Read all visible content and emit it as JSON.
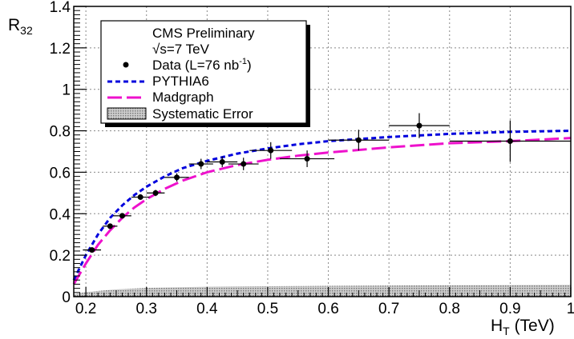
{
  "chart_data": {
    "type": "line",
    "title": "",
    "xlabel": "H_T (TeV)",
    "ylabel": "R_32",
    "xlim": [
      0.18,
      1.0
    ],
    "ylim": [
      0,
      1.4
    ],
    "grid": true,
    "x_ticks": [
      "0.2",
      "0.3",
      "0.4",
      "0.5",
      "0.6",
      "0.7",
      "0.8",
      "0.9",
      "1"
    ],
    "y_ticks": [
      "0",
      "0.2",
      "0.4",
      "0.6",
      "0.8",
      "1",
      "1.2",
      "1.4"
    ],
    "legend_position": "top-left",
    "legend": {
      "header": "CMS Preliminary",
      "energy": "√s=7 TeV",
      "entries": [
        {
          "key": "data",
          "label": "Data (L=76 nb",
          "superscript": "-1",
          "suffix": ")"
        },
        {
          "key": "pythia",
          "label": "PYTHIA6"
        },
        {
          "key": "madgraph",
          "label": "Madgraph"
        },
        {
          "key": "syst",
          "label": "Systematic Error"
        }
      ]
    },
    "colors": {
      "pythia": "#0000dd",
      "madgraph": "#ee11cc",
      "data": "#000000",
      "syst": "#aaaaaa"
    },
    "series": [
      {
        "name": "Data (L=76 nb-1)",
        "style": "points-with-errors",
        "points": [
          {
            "x": 0.21,
            "y": 0.225,
            "xerr": 0.015,
            "yerr": 0.012
          },
          {
            "x": 0.24,
            "y": 0.34,
            "xerr": 0.012,
            "yerr": 0.012
          },
          {
            "x": 0.26,
            "y": 0.39,
            "xerr": 0.015,
            "yerr": 0.012
          },
          {
            "x": 0.29,
            "y": 0.48,
            "xerr": 0.015,
            "yerr": 0.012
          },
          {
            "x": 0.315,
            "y": 0.5,
            "xerr": 0.015,
            "yerr": 0.015
          },
          {
            "x": 0.35,
            "y": 0.575,
            "xerr": 0.02,
            "yerr": 0.02
          },
          {
            "x": 0.39,
            "y": 0.64,
            "xerr": 0.02,
            "yerr": 0.025
          },
          {
            "x": 0.425,
            "y": 0.65,
            "xerr": 0.025,
            "yerr": 0.025
          },
          {
            "x": 0.46,
            "y": 0.64,
            "xerr": 0.025,
            "yerr": 0.03
          },
          {
            "x": 0.505,
            "y": 0.705,
            "xerr": 0.035,
            "yerr": 0.04
          },
          {
            "x": 0.565,
            "y": 0.665,
            "xerr": 0.045,
            "yerr": 0.04
          },
          {
            "x": 0.65,
            "y": 0.755,
            "xerr": 0.05,
            "yerr": 0.05
          },
          {
            "x": 0.75,
            "y": 0.825,
            "xerr": 0.05,
            "yerr": 0.06
          },
          {
            "x": 0.9,
            "y": 0.75,
            "xerr": 0.1,
            "yerr": 0.1
          }
        ]
      },
      {
        "name": "PYTHIA6",
        "style": "dashed-short",
        "x": [
          0.18,
          0.2,
          0.22,
          0.24,
          0.26,
          0.28,
          0.3,
          0.33,
          0.36,
          0.4,
          0.45,
          0.5,
          0.55,
          0.6,
          0.7,
          0.8,
          0.9,
          1.0
        ],
        "y": [
          0.08,
          0.2,
          0.3,
          0.38,
          0.44,
          0.49,
          0.53,
          0.58,
          0.62,
          0.655,
          0.69,
          0.715,
          0.735,
          0.75,
          0.77,
          0.785,
          0.795,
          0.8
        ]
      },
      {
        "name": "Madgraph",
        "style": "dashed-long",
        "x": [
          0.18,
          0.2,
          0.22,
          0.24,
          0.26,
          0.28,
          0.3,
          0.33,
          0.36,
          0.4,
          0.45,
          0.5,
          0.55,
          0.6,
          0.7,
          0.8,
          0.9,
          1.0
        ],
        "y": [
          0.06,
          0.16,
          0.25,
          0.32,
          0.38,
          0.43,
          0.47,
          0.52,
          0.56,
          0.6,
          0.635,
          0.66,
          0.68,
          0.695,
          0.72,
          0.74,
          0.75,
          0.765
        ]
      },
      {
        "name": "Systematic Error",
        "style": "band",
        "x": [
          0.18,
          0.2,
          0.25,
          0.3,
          0.4,
          0.5,
          0.6,
          0.8,
          1.0
        ],
        "y": [
          0.012,
          0.022,
          0.035,
          0.042,
          0.048,
          0.05,
          0.052,
          0.055,
          0.057
        ]
      }
    ]
  }
}
